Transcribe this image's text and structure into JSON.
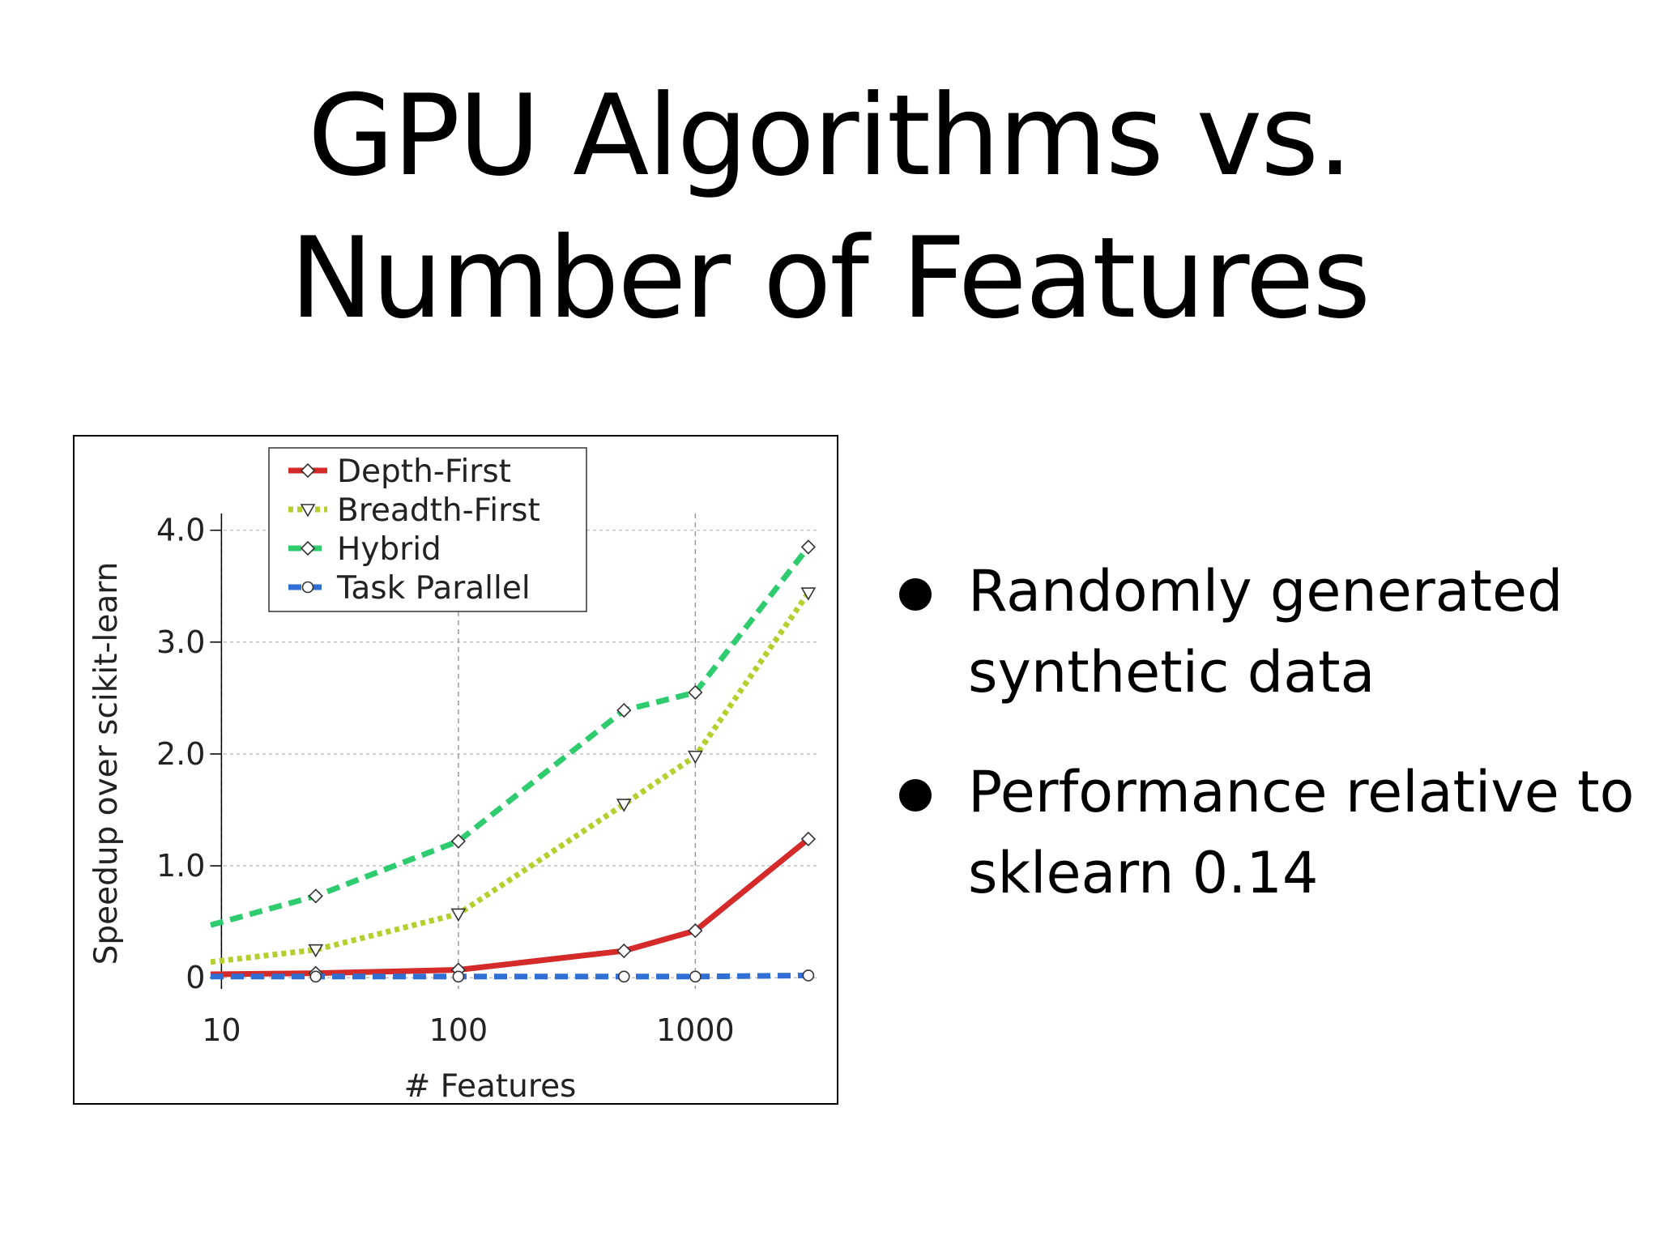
{
  "slide": {
    "title_line1": "GPU Algorithms vs.",
    "title_line2": "Number of  Features",
    "bullets": [
      "Randomly generated synthetic data",
      "Performance relative to sklearn 0.14"
    ]
  },
  "chart_data": {
    "type": "line",
    "xlabel": "# Features",
    "ylabel": "Speedup over scikit-learn",
    "xscale": "log",
    "xlim": [
      9,
      3300
    ],
    "ylim": [
      -0.1,
      4.15
    ],
    "xticks": [
      10,
      100,
      1000
    ],
    "xtick_labels": [
      "10",
      "100",
      "1000"
    ],
    "yticks": [
      0,
      1,
      2,
      3,
      4
    ],
    "ytick_labels": [
      "0",
      "1.0",
      "2.0",
      "3.0",
      "4.0"
    ],
    "grid": true,
    "legend_position": "top-left",
    "series": [
      {
        "name": "Depth-First",
        "color": "#d42a2a",
        "style": "solid",
        "marker": "diamond",
        "points": [
          [
            9,
            0.03
          ],
          [
            25,
            0.04
          ],
          [
            100,
            0.07
          ],
          [
            500,
            0.24
          ],
          [
            1000,
            0.42
          ],
          [
            3000,
            1.24
          ]
        ]
      },
      {
        "name": "Breadth-First",
        "color": "#b5cf2e",
        "style": "dotted",
        "marker": "triangle-down",
        "points": [
          [
            9,
            0.14
          ],
          [
            25,
            0.25
          ],
          [
            100,
            0.57
          ],
          [
            500,
            1.55
          ],
          [
            1000,
            1.98
          ],
          [
            3000,
            3.44
          ]
        ]
      },
      {
        "name": "Hybrid",
        "color": "#2ecc6e",
        "style": "dashed",
        "marker": "diamond",
        "points": [
          [
            9,
            0.47
          ],
          [
            25,
            0.73
          ],
          [
            100,
            1.22
          ],
          [
            500,
            2.39
          ],
          [
            1000,
            2.55
          ],
          [
            3000,
            3.85
          ]
        ]
      },
      {
        "name": "Task Parallel",
        "color": "#2f6fd6",
        "style": "dashed",
        "marker": "circle",
        "points": [
          [
            9,
            0.01
          ],
          [
            25,
            0.01
          ],
          [
            100,
            0.01
          ],
          [
            500,
            0.01
          ],
          [
            1000,
            0.01
          ],
          [
            3000,
            0.02
          ]
        ]
      }
    ]
  }
}
